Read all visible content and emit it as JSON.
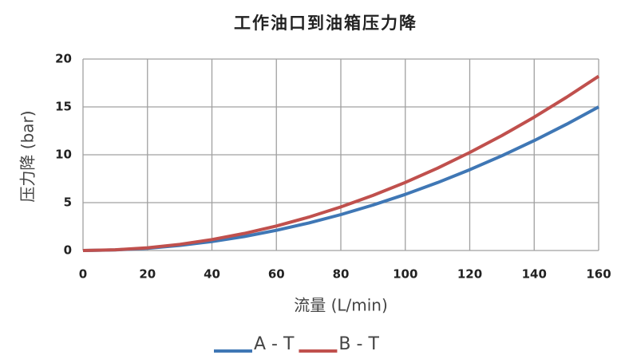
{
  "chart_data": {
    "type": "line",
    "title": "工作油口到油箱压力降",
    "x_label": "流量 (L/min)",
    "y_label": "压力降 (bar)",
    "x": [
      0,
      10,
      20,
      30,
      40,
      50,
      60,
      70,
      80,
      90,
      100,
      110,
      120,
      130,
      140,
      150,
      160
    ],
    "series": [
      {
        "name": "A - T",
        "color": "#3f77b5",
        "values": [
          0,
          0.06,
          0.23,
          0.53,
          0.94,
          1.46,
          2.11,
          2.87,
          3.75,
          4.75,
          5.86,
          7.09,
          8.44,
          9.9,
          11.48,
          13.18,
          15
        ]
      },
      {
        "name": "B - T",
        "color": "#c0504d",
        "values": [
          0,
          0.07,
          0.28,
          0.64,
          1.14,
          1.78,
          2.56,
          3.48,
          4.55,
          5.76,
          7.11,
          8.6,
          10.24,
          12.01,
          13.93,
          16.0,
          18.2
        ]
      }
    ],
    "xlim": [
      0,
      160
    ],
    "xticks": [
      0,
      20,
      40,
      60,
      80,
      100,
      120,
      140,
      160
    ],
    "ylim": [
      0,
      20
    ],
    "yticks": [
      0,
      5,
      10,
      15,
      20
    ],
    "grid": true
  }
}
